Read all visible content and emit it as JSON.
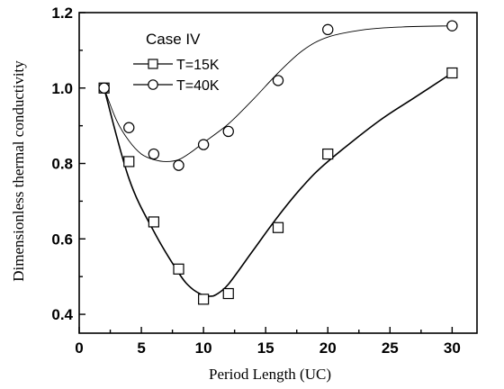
{
  "chart_data": {
    "type": "scatter",
    "title": "",
    "xlabel": "Period Length (UC)",
    "ylabel": "Dimensionless thermal conductivity",
    "xlim": [
      0,
      32
    ],
    "ylim": [
      0.35,
      1.2
    ],
    "xticks": [
      0,
      5,
      10,
      15,
      20,
      25,
      30
    ],
    "yticks": [
      0.4,
      0.6,
      0.8,
      1.0,
      1.2
    ],
    "xtick_labels": [
      "0",
      "5",
      "10",
      "15",
      "20",
      "25",
      "30"
    ],
    "ytick_labels": [
      "0.4",
      "0.6",
      "0.8",
      "1.0",
      "1.2"
    ],
    "grid": false,
    "legend_title": "Case IV",
    "legend_position": "top-left",
    "series": [
      {
        "name": "T=15K",
        "marker": "square",
        "x": [
          2,
          4,
          6,
          8,
          10,
          12,
          16,
          20,
          30
        ],
        "y": [
          1.0,
          0.805,
          0.645,
          0.52,
          0.44,
          0.455,
          0.63,
          0.825,
          1.04
        ],
        "fit_x": [
          2,
          4,
          6,
          8,
          9,
          10,
          10.5,
          11,
          12,
          14,
          16,
          18,
          20,
          24,
          27,
          30
        ],
        "fit_y": [
          1.0,
          0.76,
          0.62,
          0.51,
          0.47,
          0.45,
          0.448,
          0.452,
          0.48,
          0.57,
          0.66,
          0.74,
          0.805,
          0.91,
          0.975,
          1.04
        ]
      },
      {
        "name": "T=40K",
        "marker": "circle",
        "x": [
          2,
          4,
          6,
          8,
          10,
          12,
          16,
          20,
          30
        ],
        "y": [
          1.0,
          0.895,
          0.825,
          0.795,
          0.85,
          0.885,
          1.02,
          1.155,
          1.165
        ],
        "fit_x": [
          2,
          3,
          4,
          5,
          6,
          7,
          8,
          9,
          10,
          12,
          14,
          16,
          18,
          20,
          23,
          26,
          30
        ],
        "fit_y": [
          1.0,
          0.915,
          0.86,
          0.825,
          0.81,
          0.805,
          0.81,
          0.83,
          0.855,
          0.905,
          0.97,
          1.04,
          1.1,
          1.135,
          1.155,
          1.162,
          1.165
        ]
      }
    ]
  }
}
